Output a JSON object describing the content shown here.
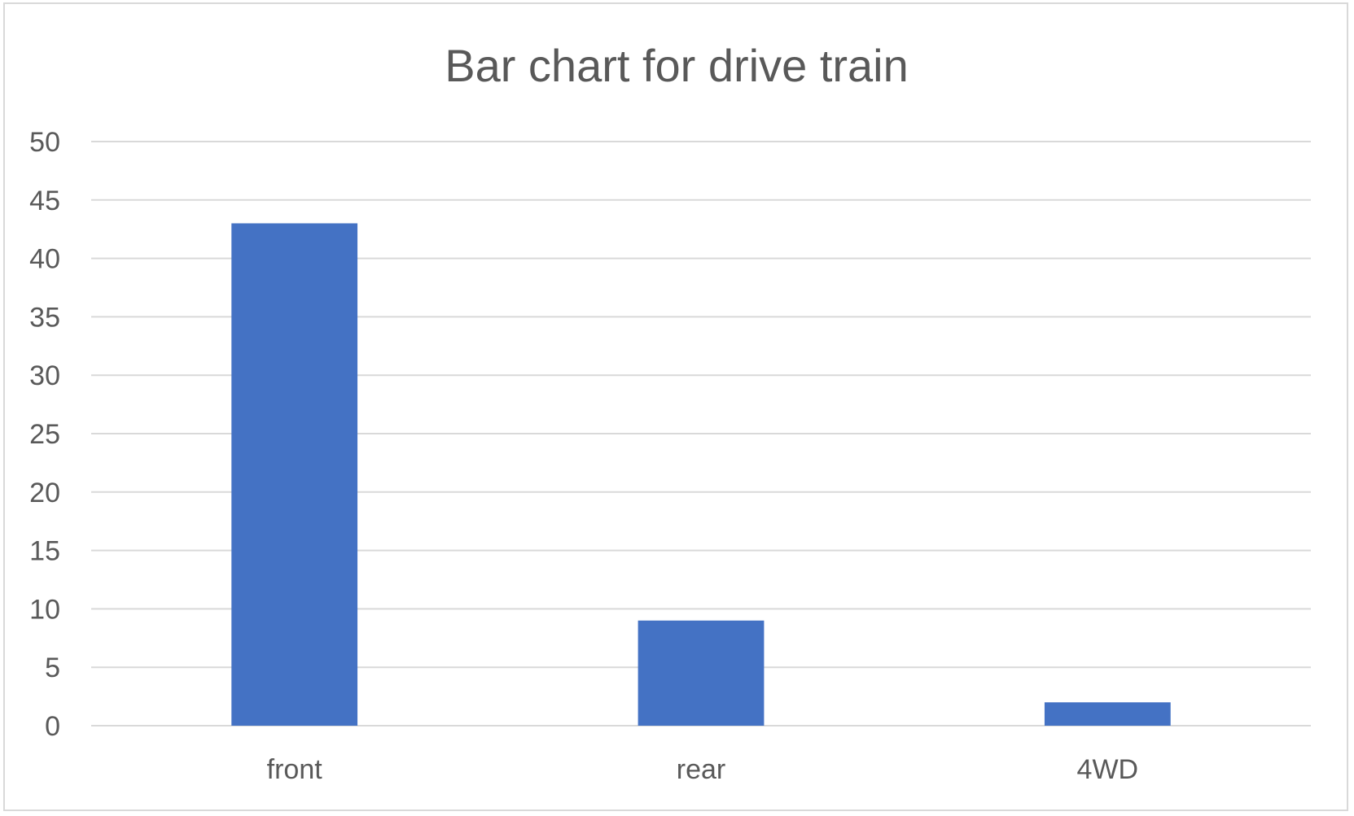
{
  "chart_data": {
    "type": "bar",
    "title": "Bar chart for drive train",
    "categories": [
      "front",
      "rear",
      "4WD"
    ],
    "values": [
      43,
      9,
      2
    ],
    "xlabel": "",
    "ylabel": "",
    "ylim": [
      0,
      50
    ],
    "yticks": [
      0,
      5,
      10,
      15,
      20,
      25,
      30,
      35,
      40,
      45,
      50
    ],
    "grid": true,
    "legend": "none",
    "bar_color": "#4472C4",
    "grid_color": "#D9D9D9",
    "text_color": "#595959"
  }
}
